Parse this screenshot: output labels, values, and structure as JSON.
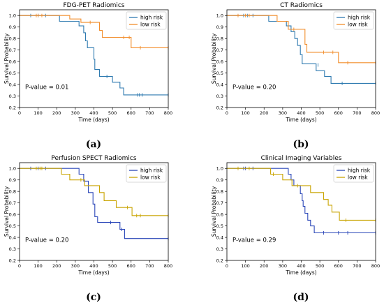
{
  "chart_data": [
    {
      "type": "line",
      "caption": "(a)",
      "title": "FDG-PET Radiomics",
      "xlabel": "Time (days)",
      "ylabel": "Survival Probability",
      "xlim": [
        0,
        800
      ],
      "ylim": [
        0.2,
        1.05
      ],
      "xticks": [
        0,
        100,
        200,
        300,
        400,
        500,
        600,
        700,
        800
      ],
      "yticks": [
        0.2,
        0.3,
        0.4,
        0.5,
        0.6,
        0.7,
        0.8,
        0.9,
        1.0
      ],
      "pvalue": "P-value = 0.01",
      "legend_position": "top-right",
      "series": [
        {
          "name": "high risk",
          "color": "#2e7ab0",
          "steps": [
            [
              0,
              1.0
            ],
            [
              215,
              0.95
            ],
            [
              320,
              0.91
            ],
            [
              345,
              0.85
            ],
            [
              355,
              0.78
            ],
            [
              365,
              0.72
            ],
            [
              400,
              0.62
            ],
            [
              405,
              0.53
            ],
            [
              430,
              0.47
            ],
            [
              500,
              0.42
            ],
            [
              540,
              0.37
            ],
            [
              560,
              0.31
            ],
            [
              800,
              0.31
            ]
          ],
          "censors": [
            [
              60,
              1.0
            ],
            [
              100,
              1.0
            ],
            [
              140,
              1.0
            ],
            [
              470,
              0.47
            ],
            [
              635,
              0.31
            ],
            [
              645,
              0.31
            ],
            [
              660,
              0.31
            ],
            [
              800,
              0.31
            ]
          ]
        },
        {
          "name": "low risk",
          "color": "#f28d2b",
          "steps": [
            [
              0,
              1.0
            ],
            [
              270,
              0.97
            ],
            [
              330,
              0.94
            ],
            [
              430,
              0.87
            ],
            [
              445,
              0.81
            ],
            [
              600,
              0.72
            ],
            [
              800,
              0.72
            ]
          ],
          "censors": [
            [
              90,
              1.0
            ],
            [
              100,
              1.0
            ],
            [
              120,
              1.0
            ],
            [
              380,
              0.94
            ],
            [
              560,
              0.81
            ],
            [
              590,
              0.81
            ],
            [
              650,
              0.72
            ],
            [
              800,
              0.72
            ]
          ]
        }
      ]
    },
    {
      "type": "line",
      "caption": "(b)",
      "title": "CT Radiomics",
      "xlabel": "Time (days)",
      "ylabel": "Survival Probability",
      "xlim": [
        0,
        800
      ],
      "ylim": [
        0.2,
        1.05
      ],
      "xticks": [
        0,
        100,
        200,
        300,
        400,
        500,
        600,
        700,
        800
      ],
      "yticks": [
        0.2,
        0.3,
        0.4,
        0.5,
        0.6,
        0.7,
        0.8,
        0.9,
        1.0
      ],
      "pvalue": "P-value = 0.20",
      "legend_position": "top-right",
      "series": [
        {
          "name": "high risk",
          "color": "#2e7ab0",
          "steps": [
            [
              0,
              1.0
            ],
            [
              225,
              0.95
            ],
            [
              320,
              0.91
            ],
            [
              345,
              0.86
            ],
            [
              365,
              0.8
            ],
            [
              380,
              0.74
            ],
            [
              395,
              0.66
            ],
            [
              405,
              0.58
            ],
            [
              480,
              0.52
            ],
            [
              525,
              0.47
            ],
            [
              560,
              0.41
            ],
            [
              800,
              0.41
            ]
          ],
          "censors": [
            [
              90,
              1.0
            ],
            [
              110,
              1.0
            ],
            [
              140,
              1.0
            ],
            [
              490,
              0.57
            ],
            [
              620,
              0.41
            ],
            [
              800,
              0.41
            ]
          ]
        },
        {
          "name": "low risk",
          "color": "#f28d2b",
          "steps": [
            [
              0,
              1.0
            ],
            [
              270,
              0.95
            ],
            [
              330,
              0.88
            ],
            [
              420,
              0.75
            ],
            [
              430,
              0.68
            ],
            [
              600,
              0.59
            ],
            [
              800,
              0.59
            ]
          ],
          "censors": [
            [
              60,
              1.0
            ],
            [
              100,
              1.0
            ],
            [
              120,
              1.0
            ],
            [
              360,
              0.88
            ],
            [
              520,
              0.68
            ],
            [
              570,
              0.68
            ],
            [
              650,
              0.59
            ],
            [
              800,
              0.59
            ]
          ]
        }
      ]
    },
    {
      "type": "line",
      "caption": "(c)",
      "title": "Perfusion SPECT Radiomics",
      "xlabel": "Time (days)",
      "ylabel": "Survival Probability",
      "xlim": [
        0,
        800
      ],
      "ylim": [
        0.2,
        1.05
      ],
      "xticks": [
        0,
        100,
        200,
        300,
        400,
        500,
        600,
        700,
        800
      ],
      "yticks": [
        0.2,
        0.3,
        0.4,
        0.5,
        0.6,
        0.7,
        0.8,
        0.9,
        1.0
      ],
      "pvalue": "P-value = 0.20",
      "legend_position": "top-right",
      "series": [
        {
          "name": "high risk",
          "color": "#2a46b8",
          "steps": [
            [
              0,
              1.0
            ],
            [
              320,
              0.95
            ],
            [
              345,
              0.89
            ],
            [
              370,
              0.79
            ],
            [
              395,
              0.69
            ],
            [
              405,
              0.58
            ],
            [
              420,
              0.53
            ],
            [
              540,
              0.47
            ],
            [
              565,
              0.39
            ],
            [
              800,
              0.39
            ]
          ],
          "censors": [
            [
              60,
              1.0
            ],
            [
              100,
              1.0
            ],
            [
              140,
              1.0
            ],
            [
              490,
              0.53
            ],
            [
              550,
              0.47
            ],
            [
              800,
              0.39
            ]
          ]
        },
        {
          "name": "low risk",
          "color": "#c9a400",
          "steps": [
            [
              0,
              1.0
            ],
            [
              225,
              0.95
            ],
            [
              270,
              0.9
            ],
            [
              350,
              0.85
            ],
            [
              430,
              0.79
            ],
            [
              455,
              0.72
            ],
            [
              520,
              0.66
            ],
            [
              605,
              0.59
            ],
            [
              800,
              0.59
            ]
          ],
          "censors": [
            [
              90,
              1.0
            ],
            [
              110,
              1.0
            ],
            [
              120,
              1.0
            ],
            [
              330,
              0.9
            ],
            [
              580,
              0.66
            ],
            [
              630,
              0.59
            ],
            [
              650,
              0.59
            ],
            [
              800,
              0.59
            ]
          ]
        }
      ]
    },
    {
      "type": "line",
      "caption": "(d)",
      "title": "Clinical Imaging Variables",
      "xlabel": "Time (days)",
      "ylabel": "Survival Probability",
      "xlim": [
        0,
        800
      ],
      "ylim": [
        0.2,
        1.05
      ],
      "xticks": [
        0,
        100,
        200,
        300,
        400,
        500,
        600,
        700,
        800
      ],
      "yticks": [
        0.2,
        0.3,
        0.4,
        0.5,
        0.6,
        0.7,
        0.8,
        0.9,
        1.0
      ],
      "pvalue": "P-value = 0.29",
      "legend_position": "top-right",
      "series": [
        {
          "name": "high risk",
          "color": "#2a46b8",
          "steps": [
            [
              0,
              1.0
            ],
            [
              330,
              0.95
            ],
            [
              345,
              0.9
            ],
            [
              360,
              0.85
            ],
            [
              395,
              0.78
            ],
            [
              405,
              0.72
            ],
            [
              410,
              0.67
            ],
            [
              420,
              0.61
            ],
            [
              435,
              0.55
            ],
            [
              450,
              0.5
            ],
            [
              470,
              0.44
            ],
            [
              800,
              0.44
            ]
          ],
          "censors": [
            [
              90,
              1.0
            ],
            [
              100,
              1.0
            ],
            [
              140,
              1.0
            ],
            [
              520,
              0.44
            ],
            [
              600,
              0.44
            ],
            [
              650,
              0.44
            ],
            [
              800,
              0.44
            ]
          ]
        },
        {
          "name": "low risk",
          "color": "#c9a400",
          "steps": [
            [
              0,
              1.0
            ],
            [
              235,
              0.95
            ],
            [
              300,
              0.9
            ],
            [
              350,
              0.85
            ],
            [
              450,
              0.79
            ],
            [
              520,
              0.73
            ],
            [
              545,
              0.68
            ],
            [
              565,
              0.62
            ],
            [
              605,
              0.55
            ],
            [
              800,
              0.55
            ]
          ],
          "censors": [
            [
              60,
              1.0
            ],
            [
              120,
              1.0
            ],
            [
              250,
              0.95
            ],
            [
              380,
              0.85
            ],
            [
              640,
              0.55
            ],
            [
              800,
              0.55
            ]
          ]
        }
      ]
    }
  ]
}
